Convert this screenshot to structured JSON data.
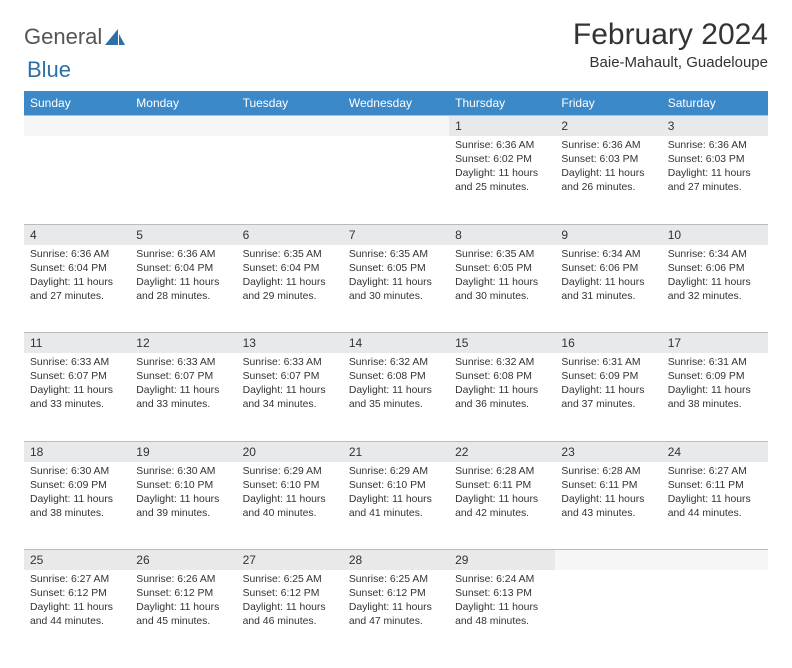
{
  "brand": {
    "part1": "General",
    "part2": "Blue"
  },
  "title": "February 2024",
  "location": "Baie-Mahault, Guadeloupe",
  "colors": {
    "header_bg": "#3b89c9",
    "header_text": "#ffffff",
    "daynum_bg": "#e7e9ea",
    "grid_line": "#b8bcbe",
    "logo_blue": "#2f6fa7"
  },
  "weekdays": [
    "Sunday",
    "Monday",
    "Tuesday",
    "Wednesday",
    "Thursday",
    "Friday",
    "Saturday"
  ],
  "startOffset": 4,
  "daysInMonth": 29,
  "days": {
    "1": {
      "sunrise": "6:36 AM",
      "sunset": "6:02 PM",
      "daylight": "11 hours and 25 minutes."
    },
    "2": {
      "sunrise": "6:36 AM",
      "sunset": "6:03 PM",
      "daylight": "11 hours and 26 minutes."
    },
    "3": {
      "sunrise": "6:36 AM",
      "sunset": "6:03 PM",
      "daylight": "11 hours and 27 minutes."
    },
    "4": {
      "sunrise": "6:36 AM",
      "sunset": "6:04 PM",
      "daylight": "11 hours and 27 minutes."
    },
    "5": {
      "sunrise": "6:36 AM",
      "sunset": "6:04 PM",
      "daylight": "11 hours and 28 minutes."
    },
    "6": {
      "sunrise": "6:35 AM",
      "sunset": "6:04 PM",
      "daylight": "11 hours and 29 minutes."
    },
    "7": {
      "sunrise": "6:35 AM",
      "sunset": "6:05 PM",
      "daylight": "11 hours and 30 minutes."
    },
    "8": {
      "sunrise": "6:35 AM",
      "sunset": "6:05 PM",
      "daylight": "11 hours and 30 minutes."
    },
    "9": {
      "sunrise": "6:34 AM",
      "sunset": "6:06 PM",
      "daylight": "11 hours and 31 minutes."
    },
    "10": {
      "sunrise": "6:34 AM",
      "sunset": "6:06 PM",
      "daylight": "11 hours and 32 minutes."
    },
    "11": {
      "sunrise": "6:33 AM",
      "sunset": "6:07 PM",
      "daylight": "11 hours and 33 minutes."
    },
    "12": {
      "sunrise": "6:33 AM",
      "sunset": "6:07 PM",
      "daylight": "11 hours and 33 minutes."
    },
    "13": {
      "sunrise": "6:33 AM",
      "sunset": "6:07 PM",
      "daylight": "11 hours and 34 minutes."
    },
    "14": {
      "sunrise": "6:32 AM",
      "sunset": "6:08 PM",
      "daylight": "11 hours and 35 minutes."
    },
    "15": {
      "sunrise": "6:32 AM",
      "sunset": "6:08 PM",
      "daylight": "11 hours and 36 minutes."
    },
    "16": {
      "sunrise": "6:31 AM",
      "sunset": "6:09 PM",
      "daylight": "11 hours and 37 minutes."
    },
    "17": {
      "sunrise": "6:31 AM",
      "sunset": "6:09 PM",
      "daylight": "11 hours and 38 minutes."
    },
    "18": {
      "sunrise": "6:30 AM",
      "sunset": "6:09 PM",
      "daylight": "11 hours and 38 minutes."
    },
    "19": {
      "sunrise": "6:30 AM",
      "sunset": "6:10 PM",
      "daylight": "11 hours and 39 minutes."
    },
    "20": {
      "sunrise": "6:29 AM",
      "sunset": "6:10 PM",
      "daylight": "11 hours and 40 minutes."
    },
    "21": {
      "sunrise": "6:29 AM",
      "sunset": "6:10 PM",
      "daylight": "11 hours and 41 minutes."
    },
    "22": {
      "sunrise": "6:28 AM",
      "sunset": "6:11 PM",
      "daylight": "11 hours and 42 minutes."
    },
    "23": {
      "sunrise": "6:28 AM",
      "sunset": "6:11 PM",
      "daylight": "11 hours and 43 minutes."
    },
    "24": {
      "sunrise": "6:27 AM",
      "sunset": "6:11 PM",
      "daylight": "11 hours and 44 minutes."
    },
    "25": {
      "sunrise": "6:27 AM",
      "sunset": "6:12 PM",
      "daylight": "11 hours and 44 minutes."
    },
    "26": {
      "sunrise": "6:26 AM",
      "sunset": "6:12 PM",
      "daylight": "11 hours and 45 minutes."
    },
    "27": {
      "sunrise": "6:25 AM",
      "sunset": "6:12 PM",
      "daylight": "11 hours and 46 minutes."
    },
    "28": {
      "sunrise": "6:25 AM",
      "sunset": "6:12 PM",
      "daylight": "11 hours and 47 minutes."
    },
    "29": {
      "sunrise": "6:24 AM",
      "sunset": "6:13 PM",
      "daylight": "11 hours and 48 minutes."
    }
  },
  "labels": {
    "sunrise": "Sunrise:",
    "sunset": "Sunset:",
    "daylight": "Daylight:"
  }
}
